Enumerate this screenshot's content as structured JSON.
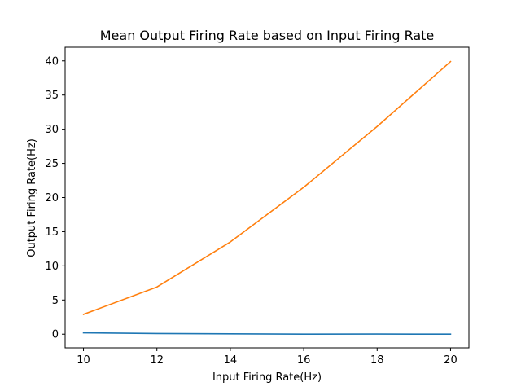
{
  "chart_data": {
    "type": "line",
    "title": "Mean Output Firing Rate based on Input Firing Rate",
    "xlabel": "Input Firing Rate(Hz)",
    "ylabel": "Output Firing Rate(Hz)",
    "x": [
      10,
      12,
      14,
      16,
      18,
      20
    ],
    "xlim": [
      9.5,
      20.5
    ],
    "ylim": [
      -2,
      42
    ],
    "xticks": [
      "10",
      "12",
      "14",
      "16",
      "18",
      "20"
    ],
    "yticks": [
      "0",
      "5",
      "10",
      "15",
      "20",
      "25",
      "30",
      "35",
      "40"
    ],
    "grid": false,
    "series": [
      {
        "color": "#1f77b4",
        "values": [
          0.2,
          0.1,
          0.05,
          0.0,
          0.02,
          0.0
        ]
      },
      {
        "color": "#ff7f0e",
        "values": [
          2.9,
          6.9,
          13.5,
          21.5,
          30.4,
          39.9
        ]
      }
    ]
  }
}
